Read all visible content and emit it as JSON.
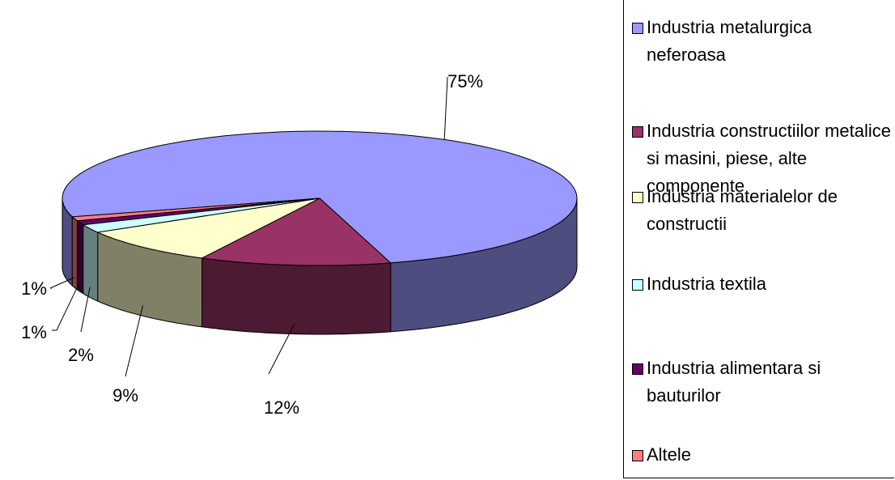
{
  "chart_data": {
    "type": "pie3d",
    "series": [
      {
        "name": "Industria metalurgica neferoasa",
        "color": "#9999ff"
      },
      {
        "name": "Industria constructiilor metalice si masini, piese, alte componente",
        "color": "#993366"
      },
      {
        "name": "Industria materialelor de constructii",
        "color": "#ffffcc"
      },
      {
        "name": "Industria textila",
        "color": "#ccffff"
      },
      {
        "name": "Industria alimentara si bauturilor",
        "color": "#660066"
      },
      {
        "name": "Altele",
        "color": "#ff8080"
      }
    ],
    "values": [
      75,
      12,
      9,
      2,
      1,
      1
    ],
    "value_labels": [
      "75%",
      "12%",
      "9%",
      "2%",
      "1%",
      "1%"
    ],
    "legend": "right"
  }
}
